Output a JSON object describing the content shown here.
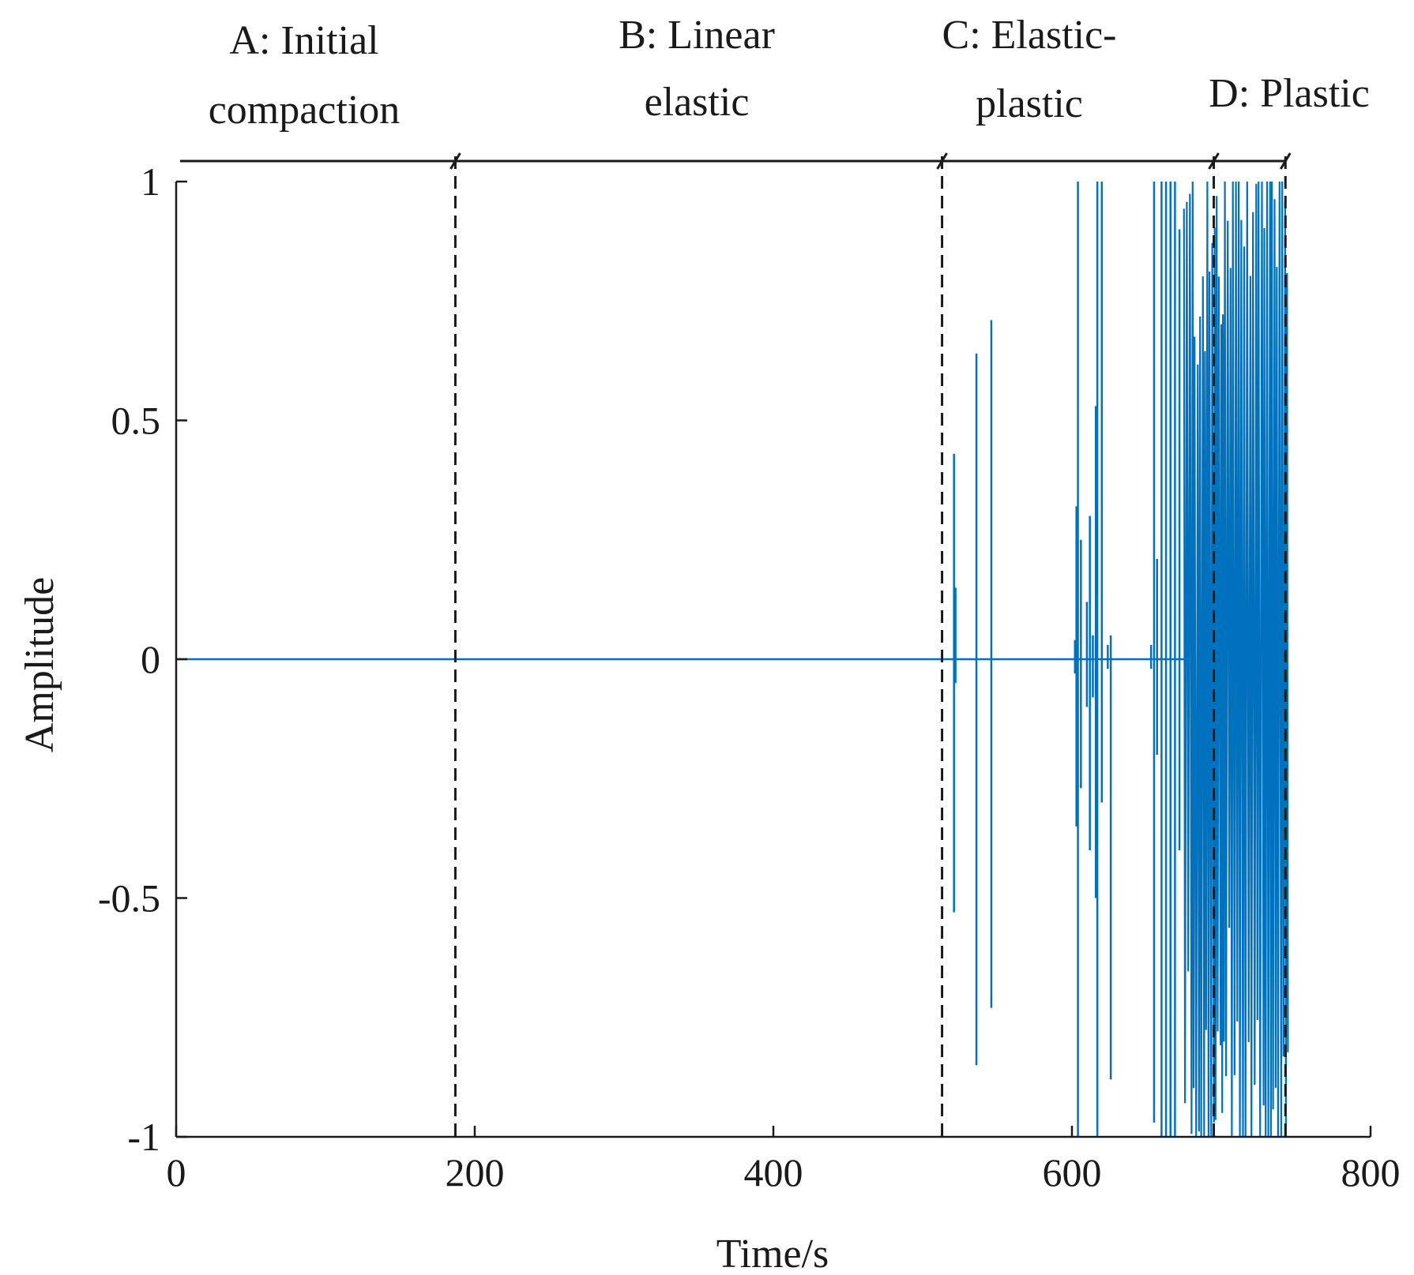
{
  "chart_data": {
    "type": "line",
    "title": "",
    "xlabel": "Time/s",
    "ylabel": "Amplitude",
    "xlim": [
      0,
      800
    ],
    "ylim": [
      -1,
      1
    ],
    "xticks": [
      0,
      200,
      400,
      600,
      800
    ],
    "xtick_labels": [
      "0",
      "200",
      "400",
      "600",
      "800"
    ],
    "yticks": [
      -1,
      -0.5,
      0,
      0.5,
      1
    ],
    "ytick_labels": [
      "-1",
      "-0.5",
      "0",
      "0.5",
      "1"
    ],
    "grid": false,
    "series": [
      {
        "name": "Amplitude",
        "color": "#0072BD",
        "baseline": 0,
        "bursts": [
          [
            521,
            0.43,
            -0.53
          ],
          [
            522,
            0.15,
            -0.05
          ],
          [
            536,
            0.64,
            -0.85
          ],
          [
            546,
            0.71,
            -0.73
          ],
          [
            602,
            0.04,
            -0.03
          ],
          [
            603,
            0.32,
            -0.35
          ],
          [
            604,
            1.0,
            -1.0
          ],
          [
            606,
            0.25,
            -0.27
          ],
          [
            610,
            0.12,
            -0.1
          ],
          [
            612,
            0.3,
            -0.4
          ],
          [
            614,
            0.05,
            -0.08
          ],
          [
            616,
            0.53,
            -0.5
          ],
          [
            617,
            1.0,
            -1.0
          ],
          [
            620,
            1.0,
            -0.3
          ],
          [
            624,
            0.03,
            -0.02
          ],
          [
            626,
            0.05,
            -0.88
          ],
          [
            653,
            0.03,
            -0.02
          ],
          [
            655,
            1.0,
            -0.97
          ],
          [
            657,
            0.21,
            -0.2
          ],
          [
            660,
            1.0,
            -1.0
          ],
          [
            663,
            1.0,
            -1.0
          ],
          [
            666,
            1.0,
            -1.0
          ],
          [
            669,
            1.0,
            -1.0
          ],
          [
            672,
            0.9,
            -0.4
          ]
        ],
        "dense_region": [
          675,
          745
        ]
      }
    ],
    "stages": [
      {
        "id": "A",
        "label_line1": "A: Initial",
        "label_line2": "compaction",
        "start": 0,
        "end": 187
      },
      {
        "id": "B",
        "label_line1": "B: Linear",
        "label_line2": "elastic",
        "start": 187,
        "end": 513
      },
      {
        "id": "C",
        "label_line1": "C: Elastic-",
        "label_line2": "plastic",
        "start": 513,
        "end": 695
      },
      {
        "id": "D",
        "label_line1": "D: Plastic",
        "label_line2": "",
        "start": 695,
        "end": 743
      }
    ],
    "boundaries": [
      187,
      513,
      695,
      743
    ]
  }
}
